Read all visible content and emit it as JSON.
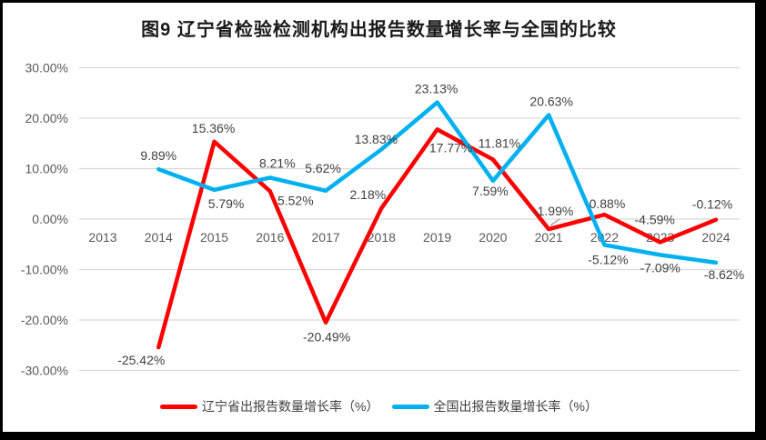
{
  "title": "图9  辽宁省检验检测机构出报告数量增长率与全国的比较",
  "colors": {
    "liaoning_red": "#FF0000",
    "national_blue": "#00B0F0",
    "gridline": "#D9D9D9",
    "axis_text": "#595959",
    "data_label": "#3F3F3F",
    "callout_line": "#A6A6A6",
    "border": "#000000",
    "background": "#FFFFFF"
  },
  "chart_data": {
    "type": "line",
    "title": "图9  辽宁省检验检测机构出报告数量增长率与全国的比较",
    "categories": [
      "2013",
      "2014",
      "2015",
      "2016",
      "2017",
      "2018",
      "2019",
      "2020",
      "2021",
      "2022",
      "2023",
      "2024"
    ],
    "series": [
      {
        "id": "liaoning",
        "name": "辽宁省出报告数量增长率（%）",
        "color": "#FF0000",
        "values": [
          null,
          -25.42,
          15.36,
          5.52,
          -20.49,
          2.18,
          17.77,
          11.81,
          -1.99,
          0.88,
          -4.59,
          -0.12
        ],
        "point_labels": [
          null,
          "-25.42%",
          "15.36%",
          "5.52%",
          "-20.49%",
          "2.18%",
          "17.77%",
          "11.81%",
          "-1.99%",
          "0.88%",
          "-4.59%",
          "-0.12%"
        ],
        "label_offsets": [
          null,
          [
            -19,
            14
          ],
          [
            -1,
            -15
          ],
          [
            28,
            10
          ],
          [
            1,
            16
          ],
          [
            -15,
            -15
          ],
          [
            15,
            20
          ],
          [
            7,
            -18
          ],
          [
            5,
            -20
          ],
          [
            3,
            -12
          ],
          [
            -6,
            -25
          ],
          [
            -4,
            -17
          ]
        ]
      },
      {
        "id": "national",
        "name": "全国出报告数量增长率（%）",
        "color": "#00B0F0",
        "values": [
          null,
          9.89,
          5.79,
          8.21,
          5.62,
          13.83,
          23.13,
          7.59,
          20.63,
          -5.12,
          -7.09,
          -8.62
        ],
        "point_labels": [
          null,
          "9.89%",
          "5.79%",
          "8.21%",
          "5.62%",
          "13.83%",
          "23.13%",
          "7.59%",
          "20.63%",
          "-5.12%",
          "-7.09%",
          "-8.62%"
        ],
        "label_offsets": [
          null,
          [
            0,
            -15
          ],
          [
            13,
            15
          ],
          [
            8,
            -16
          ],
          [
            -3,
            -25
          ],
          [
            -6,
            -11
          ],
          [
            -1,
            -15
          ],
          [
            -3,
            11
          ],
          [
            3,
            -15
          ],
          [
            4,
            16
          ],
          [
            0,
            14
          ],
          [
            9,
            13
          ]
        ]
      }
    ],
    "y_axis": {
      "tick_labels": [
        "30.00%",
        "20.00%",
        "10.00%",
        "0.00%",
        "-10.00%",
        "-20.00%",
        "-30.00%"
      ],
      "tick_values": [
        30,
        20,
        10,
        0,
        -10,
        -20,
        -30
      ],
      "min": -30,
      "max": 30
    },
    "grid": true,
    "legend_position": "bottom",
    "label_callout": {
      "series": 0,
      "index": 8
    }
  }
}
